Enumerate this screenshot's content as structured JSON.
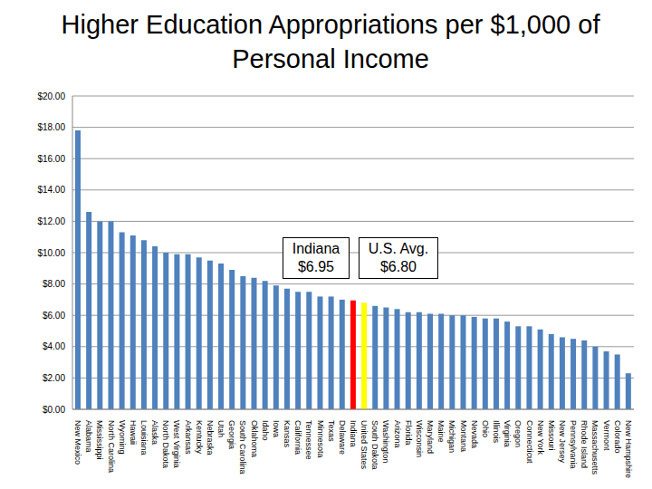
{
  "chart_data": {
    "type": "bar",
    "title": "Higher Education Appropriations per $1,000 of Personal Income",
    "categories": [
      "New Mexico",
      "Alabama",
      "Mississippi",
      "North Carolina",
      "Wyoming",
      "Hawaii",
      "Louisiana",
      "Alaska",
      "North Dakota",
      "West Virginia",
      "Arkansas",
      "Kentucky",
      "Nebraska",
      "Utah",
      "Georgia",
      "South Carolina",
      "Oklahoma",
      "Idaho",
      "Iowa",
      "Kansas",
      "California",
      "Tennessee",
      "Minnesota",
      "Texas",
      "Delaware",
      "Indiana",
      "United States",
      "South Dakota",
      "Washington",
      "Arizona",
      "Florida",
      "Wisconsin",
      "Maryland",
      "Maine",
      "Michigan",
      "Montana",
      "Nevada",
      "Ohio",
      "Illinois",
      "Virginia",
      "Oregon",
      "Connecticut",
      "New York",
      "Missouri",
      "New Jersey",
      "Pennsylvania",
      "Rhode Island",
      "Massachusetts",
      "Vermont",
      "Colorado",
      "New Hampshire"
    ],
    "values": [
      17.8,
      12.6,
      12.0,
      12.0,
      11.3,
      11.1,
      10.8,
      10.4,
      10.0,
      9.9,
      9.9,
      9.7,
      9.5,
      9.3,
      8.9,
      8.5,
      8.4,
      8.2,
      7.9,
      7.7,
      7.5,
      7.5,
      7.2,
      7.2,
      7.0,
      6.95,
      6.8,
      6.6,
      6.5,
      6.4,
      6.2,
      6.2,
      6.1,
      6.1,
      6.0,
      6.0,
      5.9,
      5.8,
      5.8,
      5.6,
      5.3,
      5.3,
      5.1,
      4.8,
      4.6,
      4.5,
      4.4,
      4.0,
      3.7,
      3.5,
      2.3
    ],
    "colors": [
      "#4f81bd",
      "#4f81bd",
      "#4f81bd",
      "#4f81bd",
      "#4f81bd",
      "#4f81bd",
      "#4f81bd",
      "#4f81bd",
      "#4f81bd",
      "#4f81bd",
      "#4f81bd",
      "#4f81bd",
      "#4f81bd",
      "#4f81bd",
      "#4f81bd",
      "#4f81bd",
      "#4f81bd",
      "#4f81bd",
      "#4f81bd",
      "#4f81bd",
      "#4f81bd",
      "#4f81bd",
      "#4f81bd",
      "#4f81bd",
      "#4f81bd",
      "#ff0000",
      "#ffff00",
      "#4f81bd",
      "#4f81bd",
      "#4f81bd",
      "#4f81bd",
      "#4f81bd",
      "#4f81bd",
      "#4f81bd",
      "#4f81bd",
      "#4f81bd",
      "#4f81bd",
      "#4f81bd",
      "#4f81bd",
      "#4f81bd",
      "#4f81bd",
      "#4f81bd",
      "#4f81bd",
      "#4f81bd",
      "#4f81bd",
      "#4f81bd",
      "#4f81bd",
      "#4f81bd",
      "#4f81bd",
      "#4f81bd",
      "#4f81bd"
    ],
    "ylim": [
      0,
      20
    ],
    "yticks": [
      {
        "value": 0,
        "label": "$0.00"
      },
      {
        "value": 2,
        "label": "$2.00"
      },
      {
        "value": 4,
        "label": "$4.00"
      },
      {
        "value": 6,
        "label": "$6.00"
      },
      {
        "value": 8,
        "label": "$8.00"
      },
      {
        "value": 10,
        "label": "$10.00"
      },
      {
        "value": 12,
        "label": "$12.00"
      },
      {
        "value": 14,
        "label": "$14.00"
      },
      {
        "value": 16,
        "label": "$16.00"
      },
      {
        "value": 18,
        "label": "$18.00"
      },
      {
        "value": 20,
        "label": "$20.00"
      }
    ],
    "grid": true,
    "annotations": [
      [
        "Indiana",
        "$6.95"
      ],
      [
        "U.S. Avg.",
        "$6.80"
      ]
    ]
  }
}
